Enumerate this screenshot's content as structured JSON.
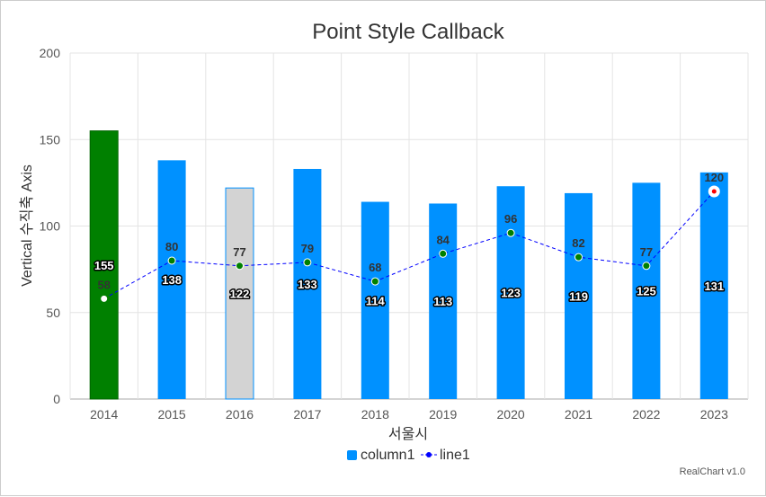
{
  "chart_data": {
    "type": "bar",
    "title": "Point Style Callback",
    "xlabel": "서울시",
    "ylabel": "Vertical 수직축 Axis",
    "ylim": [
      0,
      200
    ],
    "y_ticks": [
      "0",
      "50",
      "100",
      "150",
      "200"
    ],
    "categories": [
      "2014",
      "2015",
      "2016",
      "2017",
      "2018",
      "2019",
      "2020",
      "2021",
      "2022",
      "2023"
    ],
    "series": [
      {
        "name": "column1",
        "type": "bar",
        "values": [
          155,
          138,
          122,
          133,
          114,
          113,
          123,
          119,
          125,
          131
        ],
        "color": "#0091ff",
        "highlight": {
          "2014": "#008000",
          "2016": "#d3d3d3"
        }
      },
      {
        "name": "line1",
        "type": "line",
        "values": [
          58,
          80,
          77,
          79,
          68,
          84,
          96,
          82,
          77,
          120
        ],
        "color": "#0000ff",
        "point_color": "#008000",
        "point_style": "dashed line with circle markers; first point hollow, last point red-dot on white"
      }
    ],
    "grid": true,
    "legend": "bottom",
    "credit": "RealChart v1.0"
  }
}
